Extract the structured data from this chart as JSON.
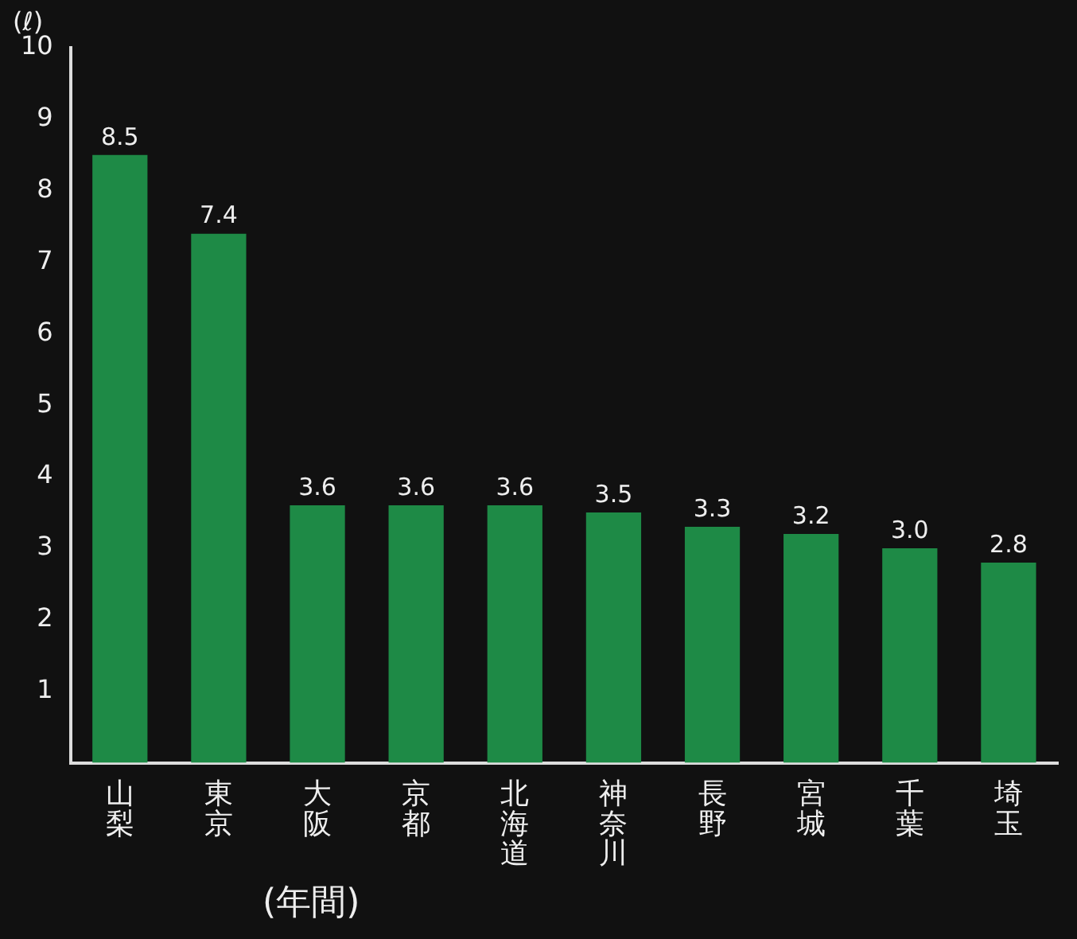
{
  "chart_data": {
    "type": "bar",
    "ylabel": "(ℓ)",
    "annotations": [
      "(年間)"
    ],
    "categories": [
      "山梨",
      "東京",
      "大阪",
      "京都",
      "北海道",
      "神奈川",
      "長野",
      "宮城",
      "千葉",
      "埼玉"
    ],
    "values": [
      8.5,
      7.4,
      3.6,
      3.6,
      3.6,
      3.5,
      3.3,
      3.2,
      3.0,
      2.8
    ],
    "value_labels": [
      "8.5",
      "7.4",
      "3.6",
      "3.6",
      "3.6",
      "3.5",
      "3.3",
      "3.2",
      "3.0",
      "2.8"
    ],
    "color": "#1e8a46",
    "ylim": [
      0,
      10
    ],
    "yticks": [
      1,
      2,
      3,
      4,
      5,
      6,
      7,
      8,
      9,
      10
    ],
    "grid": false,
    "legend": false
  }
}
